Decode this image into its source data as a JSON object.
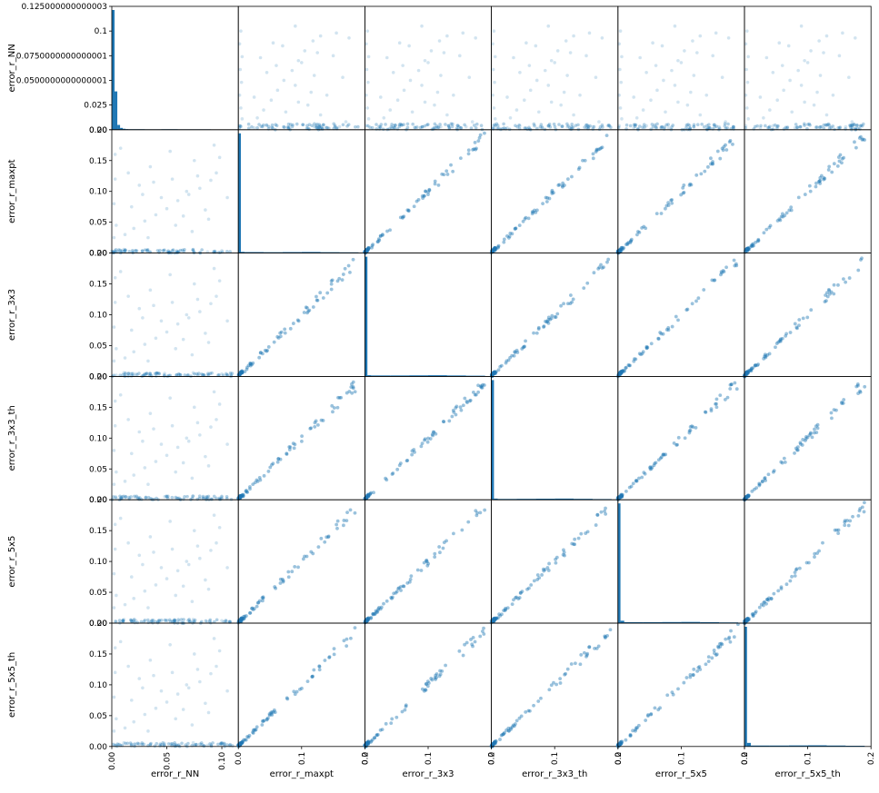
{
  "chart_data": {
    "type": "scatter",
    "subtype": "scatter-matrix",
    "variables": [
      "error_r_NN",
      "error_r_maxpt",
      "error_r_3x3",
      "error_r_3x3_th",
      "error_r_5x5",
      "error_r_5x5_th"
    ],
    "color": "#1f77b4",
    "point_alpha": 0.2,
    "diagonal": "histogram",
    "grid": false,
    "axes": {
      "error_r_NN": {
        "ylim": [
          0,
          0.125
        ],
        "y_ticks": [
          "0.00",
          "0.025",
          "0.0500000000000001",
          "0.0750000000000001",
          "0.1",
          "0.125000000000003"
        ],
        "y_tick_values": [
          0,
          0.025,
          0.05,
          0.075,
          0.1,
          0.125
        ],
        "xlim": [
          0,
          0.115
        ],
        "x_ticks": [
          "0.00",
          "0.05",
          "0.10"
        ],
        "x_tick_values": [
          0,
          0.05,
          0.1
        ]
      },
      "error_r_maxpt": {
        "range": [
          0,
          0.2
        ],
        "ticks": [
          "0.00",
          "0.05",
          "0.10",
          "0.15",
          "0.20"
        ],
        "tick_values": [
          0,
          0.05,
          0.1,
          0.15,
          0.2
        ],
        "x_ticks": [
          "0.0",
          "0.1",
          "0.2"
        ],
        "x_tick_values": [
          0,
          0.1,
          0.2
        ]
      },
      "error_r_3x3": {
        "range": [
          0,
          0.2
        ],
        "ticks": [
          "0.00",
          "0.05",
          "0.10",
          "0.15",
          "0.20"
        ],
        "tick_values": [
          0,
          0.05,
          0.1,
          0.15,
          0.2
        ],
        "x_ticks": [
          "0.0",
          "0.1",
          "0.2"
        ],
        "x_tick_values": [
          0,
          0.1,
          0.2
        ]
      },
      "error_r_3x3_th": {
        "range": [
          0,
          0.2
        ],
        "ticks": [
          "0.00",
          "0.05",
          "0.10",
          "0.15",
          "0.20"
        ],
        "tick_values": [
          0,
          0.05,
          0.1,
          0.15,
          0.2
        ],
        "x_ticks": [
          "0.0",
          "0.1",
          "0.2"
        ],
        "x_tick_values": [
          0,
          0.1,
          0.2
        ]
      },
      "error_r_5x5": {
        "range": [
          0,
          0.2
        ],
        "ticks": [
          "0.00",
          "0.05",
          "0.10",
          "0.15",
          "0.20"
        ],
        "tick_values": [
          0,
          0.05,
          0.1,
          0.15,
          0.2
        ],
        "x_ticks": [
          "0.0",
          "0.1",
          "0.2"
        ],
        "x_tick_values": [
          0,
          0.1,
          0.2
        ]
      },
      "error_r_5x5_th": {
        "range": [
          0,
          0.2
        ],
        "ticks": [
          "0.00",
          "0.05",
          "0.10",
          "0.15",
          "0.20"
        ],
        "tick_values": [
          0,
          0.05,
          0.1,
          0.15,
          0.2
        ],
        "x_ticks": [
          "0.0",
          "0.1",
          "0.2"
        ],
        "x_tick_values": [
          0,
          0.1,
          0.2
        ]
      }
    },
    "histograms": {
      "error_r_NN": {
        "bin_edges": [
          0,
          0.0025,
          0.005,
          0.0075,
          0.01,
          0.0125,
          0.015,
          0.03,
          0.045,
          0.06,
          0.075,
          0.09,
          0.105
        ],
        "relative_heights": [
          1.0,
          0.32,
          0.04,
          0.015,
          0.008,
          0.005,
          0.004,
          0.003,
          0.004,
          0.003,
          0.003,
          0.002
        ]
      },
      "error_r_maxpt": {
        "bin_edges": [
          0,
          0.004,
          0.01,
          0.04,
          0.07,
          0.1,
          0.13,
          0.16,
          0.19
        ],
        "relative_heights": [
          1.0,
          0.01,
          0.008,
          0.007,
          0.008,
          0.009,
          0.007,
          0.006
        ]
      },
      "error_r_3x3": {
        "bin_edges": [
          0,
          0.004,
          0.01,
          0.04,
          0.07,
          0.1,
          0.13,
          0.16,
          0.19
        ],
        "relative_heights": [
          1.0,
          0.01,
          0.008,
          0.008,
          0.009,
          0.01,
          0.008,
          0.006
        ]
      },
      "error_r_3x3_th": {
        "bin_edges": [
          0,
          0.004,
          0.01,
          0.04,
          0.07,
          0.1,
          0.13,
          0.16,
          0.19
        ],
        "relative_heights": [
          1.0,
          0.01,
          0.007,
          0.008,
          0.009,
          0.01,
          0.008,
          0.006
        ]
      },
      "error_r_5x5": {
        "bin_edges": [
          0,
          0.004,
          0.01,
          0.04,
          0.07,
          0.1,
          0.13,
          0.16,
          0.19
        ],
        "relative_heights": [
          1.0,
          0.02,
          0.008,
          0.008,
          0.009,
          0.01,
          0.008,
          0.006
        ]
      },
      "error_r_5x5_th": {
        "bin_edges": [
          0,
          0.004,
          0.01,
          0.04,
          0.07,
          0.1,
          0.13,
          0.16,
          0.19
        ],
        "relative_heights": [
          1.0,
          0.03,
          0.008,
          0.008,
          0.009,
          0.01,
          0.008,
          0.006
        ]
      }
    },
    "points": [
      {
        "NN": 0.004,
        "e": 0.002
      },
      {
        "NN": 0.011,
        "e": 0.006
      },
      {
        "NN": 0.022,
        "e": 0.004
      },
      {
        "NN": 0.035,
        "e": 0.002
      },
      {
        "NN": 0.048,
        "e": 0.005
      },
      {
        "NN": 0.061,
        "e": 0.003
      },
      {
        "NN": 0.074,
        "e": 0.006
      },
      {
        "NN": 0.087,
        "e": 0.002
      },
      {
        "NN": 0.1,
        "e": 0.004
      },
      {
        "NN": 0.003,
        "e": 0.12
      },
      {
        "NN": 0.002,
        "e": 0.08
      },
      {
        "NN": 0.004,
        "e": 0.045
      },
      {
        "NN": 0.003,
        "e": 0.16
      },
      {
        "NN": 0.002,
        "e": 0.025
      },
      {
        "NN": 0.012,
        "e": 0.03
      },
      {
        "NN": 0.02,
        "e": 0.04
      },
      {
        "NN": 0.03,
        "e": 0.052
      },
      {
        "NN": 0.04,
        "e": 0.062
      },
      {
        "NN": 0.05,
        "e": 0.072
      },
      {
        "NN": 0.06,
        "e": 0.085
      },
      {
        "NN": 0.07,
        "e": 0.095
      },
      {
        "NN": 0.08,
        "e": 0.105
      },
      {
        "NN": 0.09,
        "e": 0.118
      },
      {
        "NN": 0.015,
        "e": 0.13
      },
      {
        "NN": 0.025,
        "e": 0.11
      },
      {
        "NN": 0.035,
        "e": 0.14
      },
      {
        "NN": 0.045,
        "e": 0.09
      },
      {
        "NN": 0.055,
        "e": 0.12
      },
      {
        "NN": 0.065,
        "e": 0.06
      },
      {
        "NN": 0.075,
        "e": 0.15
      },
      {
        "NN": 0.085,
        "e": 0.07
      },
      {
        "NN": 0.095,
        "e": 0.13
      },
      {
        "NN": 0.105,
        "e": 0.09
      },
      {
        "NN": 0.018,
        "e": 0.075
      },
      {
        "NN": 0.028,
        "e": 0.095
      },
      {
        "NN": 0.038,
        "e": 0.115
      },
      {
        "NN": 0.058,
        "e": 0.045
      },
      {
        "NN": 0.068,
        "e": 0.1
      },
      {
        "NN": 0.078,
        "e": 0.125
      },
      {
        "NN": 0.088,
        "e": 0.055
      },
      {
        "NN": 0.098,
        "e": 0.155
      },
      {
        "NN": 0.008,
        "e": 0.17
      },
      {
        "NN": 0.033,
        "e": 0.025
      },
      {
        "NN": 0.053,
        "e": 0.165
      },
      {
        "NN": 0.073,
        "e": 0.035
      },
      {
        "NN": 0.093,
        "e": 0.175
      }
    ]
  }
}
